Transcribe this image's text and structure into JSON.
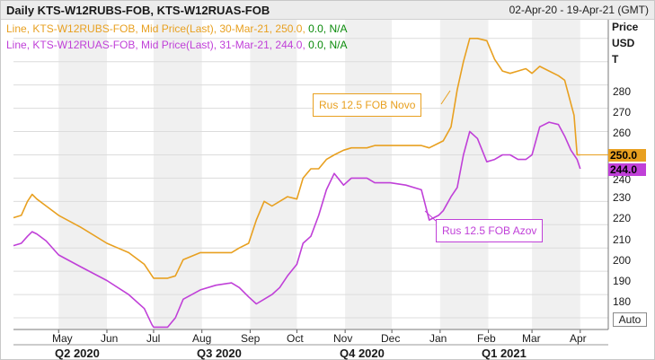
{
  "header": {
    "title": "Daily KTS-W12RUBS-FOB, KTS-W12RUAS-FOB",
    "date_range": "02-Apr-20 - 19-Apr-21 (GMT)"
  },
  "legend": [
    {
      "prefix": "Line, KTS-W12RUBS-FOB, Mid Price(Last), 30-Mar-21, 250.0,",
      "change": "0.0,",
      "na": "N/A"
    },
    {
      "prefix": "Line, KTS-W12RUAS-FOB, Mid Price(Last), 31-Mar-21, 244.0,",
      "change": "0.0,",
      "na": "N/A"
    }
  ],
  "axis": {
    "unit_lines": [
      "Price",
      "USD",
      "T"
    ],
    "y_ticks": [
      "280",
      "270",
      "260",
      "240",
      "230",
      "220",
      "210",
      "200",
      "190",
      "180"
    ],
    "auto_label": "Auto"
  },
  "badges": {
    "rubs": "250.0",
    "ruas": "244.0"
  },
  "annotations": {
    "novo": "Rus 12.5 FOB Novo",
    "azov": "Rus 12.5 FOB Azov"
  },
  "x_axis": {
    "months": [
      "May",
      "Jun",
      "Jul",
      "Aug",
      "Sep",
      "Oct",
      "Nov",
      "Dec",
      "Jan",
      "Feb",
      "Mar",
      "Apr"
    ],
    "quarters": [
      "Q2 2020",
      "Q3 2020",
      "Q4 2020",
      "Q1 2021"
    ]
  },
  "colors": {
    "rubs": "#e8a020",
    "ruas": "#c040d8",
    "shade": "#f0f0f0",
    "grid": "#dcdcdc"
  },
  "chart_data": {
    "type": "line",
    "title": "Daily KTS-W12RUBS-FOB, KTS-W12RUAS-FOB",
    "xlabel": "",
    "ylabel": "Price USD T",
    "ylim": [
      175,
      308
    ],
    "xlim": [
      "2020-04-02",
      "2021-04-19"
    ],
    "grid": true,
    "series": [
      {
        "name": "KTS-W12RUBS-FOB",
        "x": [
          "2020-04-02",
          "2020-04-07",
          "2020-04-11",
          "2020-04-14",
          "2020-04-17",
          "2020-04-23",
          "2020-05-01",
          "2020-05-15",
          "2020-06-01",
          "2020-06-15",
          "2020-06-25",
          "2020-06-30",
          "2020-07-01",
          "2020-07-10",
          "2020-07-15",
          "2020-07-20",
          "2020-07-31",
          "2020-08-10",
          "2020-08-20",
          "2020-08-25",
          "2020-08-31",
          "2020-09-05",
          "2020-09-10",
          "2020-09-15",
          "2020-09-20",
          "2020-09-25",
          "2020-10-01",
          "2020-10-05",
          "2020-10-10",
          "2020-10-15",
          "2020-10-20",
          "2020-10-25",
          "2020-10-31",
          "2020-11-05",
          "2020-11-10",
          "2020-11-15",
          "2020-11-20",
          "2020-11-30",
          "2020-12-10",
          "2020-12-20",
          "2020-12-25",
          "2020-12-31",
          "2021-01-03",
          "2021-01-08",
          "2021-01-12",
          "2021-01-16",
          "2021-01-20",
          "2021-01-25",
          "2021-01-31",
          "2021-02-05",
          "2021-02-10",
          "2021-02-15",
          "2021-02-20",
          "2021-02-25",
          "2021-03-01",
          "2021-03-06",
          "2021-03-12",
          "2021-03-18",
          "2021-03-22",
          "2021-03-26",
          "2021-03-28",
          "2021-03-30",
          "2021-04-01"
        ],
        "values": [
          223,
          224,
          230,
          233,
          231,
          228,
          224,
          219,
          212,
          208,
          203,
          198,
          197,
          197,
          198,
          205,
          208,
          208,
          208,
          210,
          212,
          222,
          230,
          228,
          230,
          232,
          231,
          240,
          244,
          244,
          248,
          250,
          252,
          253,
          253,
          253,
          254,
          254,
          254,
          254,
          253,
          255,
          256,
          262,
          278,
          290,
          300,
          300,
          299,
          291,
          286,
          285,
          286,
          287,
          285,
          288,
          286,
          284,
          282,
          272,
          267,
          250,
          250
        ]
      },
      {
        "name": "KTS-W12RUAS-FOB",
        "x": [
          "2020-04-02",
          "2020-04-07",
          "2020-04-11",
          "2020-04-14",
          "2020-04-17",
          "2020-04-23",
          "2020-05-01",
          "2020-05-15",
          "2020-06-01",
          "2020-06-15",
          "2020-06-25",
          "2020-06-30",
          "2020-07-01",
          "2020-07-10",
          "2020-07-15",
          "2020-07-20",
          "2020-07-31",
          "2020-08-10",
          "2020-08-20",
          "2020-08-25",
          "2020-08-31",
          "2020-09-05",
          "2020-09-10",
          "2020-09-15",
          "2020-09-20",
          "2020-09-25",
          "2020-10-01",
          "2020-10-05",
          "2020-10-10",
          "2020-10-15",
          "2020-10-20",
          "2020-10-25",
          "2020-10-31",
          "2020-11-05",
          "2020-11-10",
          "2020-11-15",
          "2020-11-20",
          "2020-11-30",
          "2020-12-10",
          "2020-12-20",
          "2020-12-25",
          "2020-12-31",
          "2021-01-03",
          "2021-01-08",
          "2021-01-12",
          "2021-01-16",
          "2021-01-20",
          "2021-01-25",
          "2021-01-31",
          "2021-02-05",
          "2021-02-10",
          "2021-02-15",
          "2021-02-20",
          "2021-02-25",
          "2021-03-01",
          "2021-03-06",
          "2021-03-12",
          "2021-03-18",
          "2021-03-22",
          "2021-03-26",
          "2021-03-28",
          "2021-03-30",
          "2021-04-01"
        ],
        "values": [
          211,
          212,
          215,
          217,
          216,
          213,
          207,
          202,
          196,
          190,
          184,
          177,
          176,
          176,
          180,
          188,
          192,
          194,
          195,
          193,
          189,
          186,
          188,
          190,
          193,
          198,
          203,
          212,
          215,
          224,
          235,
          242,
          237,
          240,
          240,
          240,
          238,
          238,
          237,
          235,
          222,
          224,
          226,
          232,
          236,
          250,
          260,
          257,
          247,
          248,
          250,
          250,
          248,
          248,
          250,
          262,
          264,
          263,
          258,
          252,
          250,
          248,
          244
        ]
      }
    ],
    "annotations": [
      "Rus 12.5 FOB Novo",
      "Rus 12.5 FOB Azov"
    ]
  }
}
